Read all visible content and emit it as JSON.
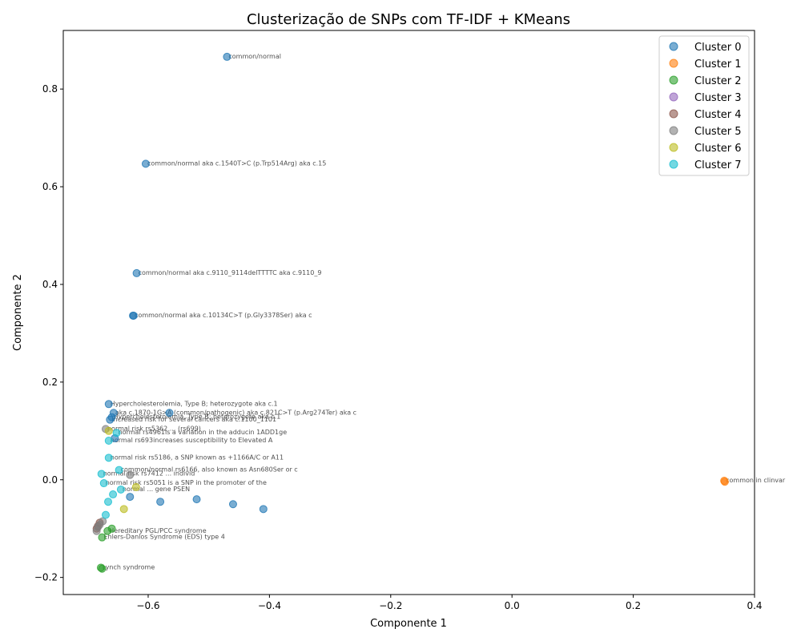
{
  "chart_data": {
    "type": "scatter",
    "title": "Clusterização de SNPs com TF-IDF + KMeans",
    "xlabel": "Componente 1",
    "ylabel": "Componente 2",
    "xlim": [
      -0.74,
      0.4
    ],
    "ylim": [
      -0.235,
      0.92
    ],
    "xticks": [
      -0.6,
      -0.4,
      -0.2,
      0.0,
      0.2,
      0.4
    ],
    "xtick_labels": [
      "−0.6",
      "−0.4",
      "−0.2",
      "0.0",
      "0.2",
      "0.4"
    ],
    "yticks": [
      -0.2,
      0.0,
      0.2,
      0.4,
      0.6,
      0.8
    ],
    "ytick_labels": [
      "−0.2",
      "0.0",
      "0.2",
      "0.4",
      "0.6",
      "0.8"
    ],
    "grid": false,
    "legend_position": "top-right",
    "series": [
      {
        "name": "Cluster 0",
        "color": "#1f77b4",
        "points": [
          {
            "x": -0.47,
            "y": 0.866,
            "label": "common/normal"
          },
          {
            "x": -0.604,
            "y": 0.647,
            "label": "common/normal aka c.1540T>C (p.Trp514Arg) aka c.15"
          },
          {
            "x": -0.619,
            "y": 0.423,
            "label": "common/normal aka c.9110_9114delTTTTC aka c.9110_9"
          },
          {
            "x": -0.625,
            "y": 0.336,
            "label": "common/normal aka c.10134C>T (p.Gly3378Ser) aka c"
          },
          {
            "x": -0.624,
            "y": 0.336,
            "label": ""
          },
          {
            "x": -0.665,
            "y": 0.155,
            "label": "Hypercholesterolemia, Type B; heterozygote aka c.1"
          },
          {
            "x": -0.657,
            "y": 0.137,
            "label": "aka c.1870-1G>A (common/pathogenic) aka c.821C>T (p.Arg274Ter) aka c"
          },
          {
            "x": -0.565,
            "y": 0.137,
            "label": ""
          },
          {
            "x": -0.66,
            "y": 0.128,
            "label": "Hypercholesterolemia, Type B; heterozygote aka c.1"
          },
          {
            "x": -0.663,
            "y": 0.123,
            "label": "Increased risk for several cancers aka c.1100_1101"
          },
          {
            "x": -0.655,
            "y": 0.085,
            "label": ""
          },
          {
            "x": -0.63,
            "y": -0.035,
            "label": ""
          },
          {
            "x": -0.58,
            "y": -0.045,
            "label": ""
          },
          {
            "x": -0.52,
            "y": -0.04,
            "label": ""
          },
          {
            "x": -0.46,
            "y": -0.05,
            "label": ""
          },
          {
            "x": -0.41,
            "y": -0.06,
            "label": ""
          }
        ]
      },
      {
        "name": "Cluster 1",
        "color": "#ff7f0e",
        "points": [
          {
            "x": 0.35,
            "y": -0.002,
            "label": "common in clinvar"
          },
          {
            "x": 0.351,
            "y": -0.004,
            "label": ""
          }
        ]
      },
      {
        "name": "Cluster 2",
        "color": "#2ca02c",
        "points": [
          {
            "x": -0.678,
            "y": -0.18,
            "label": "Lynch syndrome"
          },
          {
            "x": -0.676,
            "y": -0.182,
            "label": ""
          },
          {
            "x": -0.676,
            "y": -0.118,
            "label": "Ehlers-Danlos Syndrome (EDS) type 4"
          },
          {
            "x": -0.667,
            "y": -0.105,
            "label": "Hereditary PGL/PCC syndrome"
          },
          {
            "x": -0.66,
            "y": -0.1,
            "label": ""
          }
        ]
      },
      {
        "name": "Cluster 3",
        "color": "#9467bd",
        "points": []
      },
      {
        "name": "Cluster 4",
        "color": "#8c564b",
        "points": [
          {
            "x": -0.685,
            "y": -0.1,
            "label": ""
          },
          {
            "x": -0.683,
            "y": -0.095,
            "label": ""
          },
          {
            "x": -0.68,
            "y": -0.088,
            "label": ""
          }
        ]
      },
      {
        "name": "Cluster 5",
        "color": "#7f7f7f",
        "points": [
          {
            "x": -0.67,
            "y": 0.104,
            "label": "normal risk rs5362 ... (rs699)"
          },
          {
            "x": -0.685,
            "y": -0.105,
            "label": ""
          },
          {
            "x": -0.683,
            "y": -0.097,
            "label": ""
          },
          {
            "x": -0.68,
            "y": -0.092,
            "label": ""
          },
          {
            "x": -0.675,
            "y": -0.085,
            "label": ""
          },
          {
            "x": -0.63,
            "y": 0.01,
            "label": ""
          }
        ]
      },
      {
        "name": "Cluster 6",
        "color": "#bcbd22",
        "points": [
          {
            "x": -0.665,
            "y": 0.1,
            "label": ""
          },
          {
            "x": -0.62,
            "y": -0.015,
            "label": ""
          },
          {
            "x": -0.64,
            "y": -0.06,
            "label": ""
          }
        ]
      },
      {
        "name": "Cluster 7",
        "color": "#17becf",
        "points": [
          {
            "x": -0.652,
            "y": 0.096,
            "label": "normal rs4961is a variation in the adducin 1ADD1ge"
          },
          {
            "x": -0.665,
            "y": 0.08,
            "label": "normal rs693increases susceptibility to Elevated A"
          },
          {
            "x": -0.665,
            "y": 0.045,
            "label": "normal risk rs5186, a SNP known as +1166A/C or A11"
          },
          {
            "x": -0.648,
            "y": 0.02,
            "label": "common/normal rs6166, also known as Asn680Ser or c"
          },
          {
            "x": -0.677,
            "y": 0.012,
            "label": "normal risk rs7412 ... individ"
          },
          {
            "x": -0.673,
            "y": -0.007,
            "label": "normal risk rs5051 is a SNP in the promoter of the"
          },
          {
            "x": -0.666,
            "y": -0.045,
            "label": ""
          },
          {
            "x": -0.658,
            "y": -0.03,
            "label": ""
          },
          {
            "x": -0.645,
            "y": -0.02,
            "label": "normal ... gene PSEN"
          },
          {
            "x": -0.67,
            "y": -0.072,
            "label": ""
          }
        ]
      }
    ]
  }
}
